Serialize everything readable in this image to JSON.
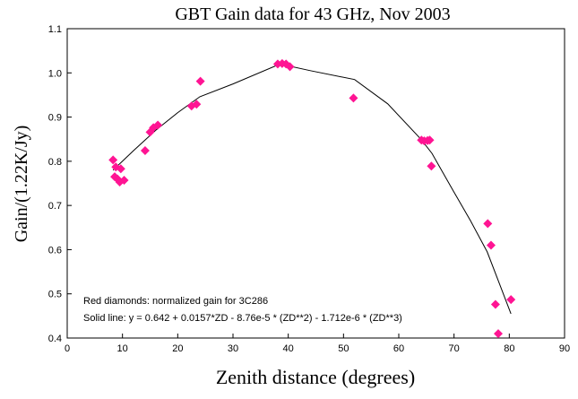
{
  "chart_data": {
    "type": "scatter",
    "title": "GBT Gain data for 43 GHz, Nov 2003",
    "xlabel": "Zenith distance (degrees)",
    "ylabel": "Gain/(1.22K/Jy)",
    "xlim": [
      0,
      90
    ],
    "ylim": [
      0.4,
      1.1
    ],
    "xticks": [
      "0",
      "10",
      "20",
      "30",
      "40",
      "50",
      "60",
      "70",
      "80",
      "90"
    ],
    "yticks": [
      "0.4",
      "0.5",
      "0.6",
      "0.7",
      "0.8",
      "0.9",
      "1.0",
      "1.1"
    ],
    "grid": false,
    "annotations": [
      "Red diamonds: normalized gain for 3C286",
      "Solid line:  y = 0.642 + 0.0157*ZD - 8.76e-5 * (ZD**2)  - 1.712e-6 * (ZD**3)"
    ],
    "marker_color": "#ff1493",
    "line_color": "#000000",
    "series": [
      {
        "kind": "points",
        "points": [
          [
            8.3,
            0.803
          ],
          [
            8.6,
            0.765
          ],
          [
            8.8,
            0.787
          ],
          [
            9.1,
            0.76
          ],
          [
            9.5,
            0.753
          ],
          [
            9.7,
            0.783
          ],
          [
            10.3,
            0.757
          ],
          [
            14.1,
            0.824
          ],
          [
            15.0,
            0.866
          ],
          [
            15.6,
            0.876
          ],
          [
            16.4,
            0.882
          ],
          [
            22.5,
            0.925
          ],
          [
            23.4,
            0.929
          ],
          [
            24.1,
            0.981
          ],
          [
            38.1,
            1.02
          ],
          [
            38.9,
            1.021
          ],
          [
            39.6,
            1.02
          ],
          [
            40.3,
            1.014
          ],
          [
            51.8,
            0.943
          ],
          [
            64.1,
            0.848
          ],
          [
            64.6,
            0.846
          ],
          [
            65.2,
            0.847
          ],
          [
            65.6,
            0.848
          ],
          [
            65.9,
            0.789
          ],
          [
            76.1,
            0.659
          ],
          [
            76.7,
            0.61
          ],
          [
            77.5,
            0.476
          ],
          [
            78.0,
            0.41
          ],
          [
            80.3,
            0.487
          ]
        ]
      },
      {
        "kind": "line",
        "points": [
          [
            8.3,
            0.78
          ],
          [
            12,
            0.824
          ],
          [
            16,
            0.87
          ],
          [
            20,
            0.91
          ],
          [
            24,
            0.946
          ],
          [
            30,
            0.975
          ],
          [
            38.5,
            1.02
          ],
          [
            44,
            1.005
          ],
          [
            52,
            0.985
          ],
          [
            58,
            0.93
          ],
          [
            64,
            0.85
          ],
          [
            66,
            0.818
          ],
          [
            70,
            0.73
          ],
          [
            73,
            0.665
          ],
          [
            76,
            0.595
          ],
          [
            78,
            0.53
          ],
          [
            80.3,
            0.455
          ]
        ]
      }
    ]
  }
}
